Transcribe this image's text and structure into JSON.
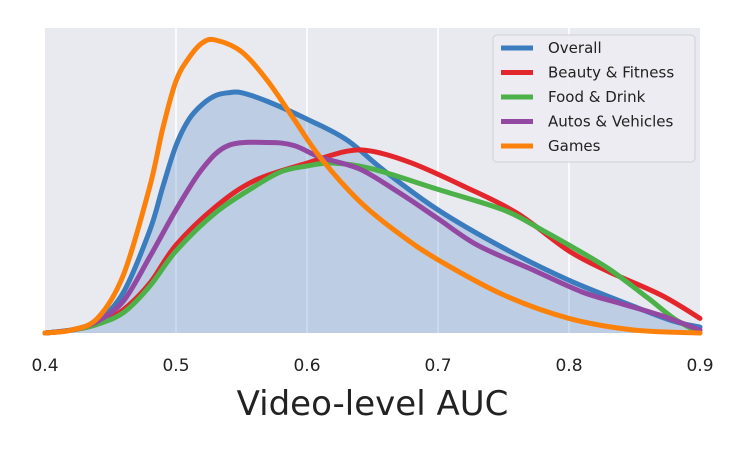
{
  "chart_data": {
    "type": "area",
    "title": "",
    "xlabel": "Video-level AUC",
    "ylabel": "",
    "xlim": [
      0.4,
      0.9
    ],
    "ylim": [
      0,
      1.0
    ],
    "x_ticks": [
      "0.4",
      "0.5",
      "0.6",
      "0.7",
      "0.8",
      "0.9"
    ],
    "grid": true,
    "legend_position": "top-right",
    "filled_series": "Overall",
    "series": [
      {
        "name": "Overall",
        "color": "#3a7cbd",
        "points": [
          [
            0.4,
            0.0
          ],
          [
            0.42,
            0.01
          ],
          [
            0.44,
            0.04
          ],
          [
            0.46,
            0.14
          ],
          [
            0.48,
            0.35
          ],
          [
            0.49,
            0.5
          ],
          [
            0.5,
            0.64
          ],
          [
            0.51,
            0.73
          ],
          [
            0.52,
            0.78
          ],
          [
            0.53,
            0.81
          ],
          [
            0.54,
            0.82
          ],
          [
            0.55,
            0.82
          ],
          [
            0.57,
            0.79
          ],
          [
            0.6,
            0.73
          ],
          [
            0.63,
            0.66
          ],
          [
            0.66,
            0.55
          ],
          [
            0.7,
            0.42
          ],
          [
            0.75,
            0.29
          ],
          [
            0.8,
            0.18
          ],
          [
            0.85,
            0.09
          ],
          [
            0.88,
            0.04
          ],
          [
            0.9,
            0.02
          ]
        ]
      },
      {
        "name": "Beauty & Fitness",
        "color": "#e3262b",
        "points": [
          [
            0.4,
            0.0
          ],
          [
            0.42,
            0.01
          ],
          [
            0.44,
            0.03
          ],
          [
            0.46,
            0.08
          ],
          [
            0.48,
            0.17
          ],
          [
            0.5,
            0.3
          ],
          [
            0.53,
            0.43
          ],
          [
            0.56,
            0.52
          ],
          [
            0.6,
            0.58
          ],
          [
            0.63,
            0.62
          ],
          [
            0.65,
            0.62
          ],
          [
            0.68,
            0.58
          ],
          [
            0.72,
            0.5
          ],
          [
            0.76,
            0.41
          ],
          [
            0.8,
            0.28
          ],
          [
            0.83,
            0.21
          ],
          [
            0.87,
            0.13
          ],
          [
            0.9,
            0.05
          ]
        ]
      },
      {
        "name": "Food & Drink",
        "color": "#4bb148",
        "points": [
          [
            0.4,
            0.0
          ],
          [
            0.42,
            0.01
          ],
          [
            0.44,
            0.03
          ],
          [
            0.46,
            0.07
          ],
          [
            0.48,
            0.16
          ],
          [
            0.5,
            0.28
          ],
          [
            0.53,
            0.41
          ],
          [
            0.56,
            0.5
          ],
          [
            0.58,
            0.55
          ],
          [
            0.6,
            0.57
          ],
          [
            0.62,
            0.58
          ],
          [
            0.65,
            0.56
          ],
          [
            0.7,
            0.49
          ],
          [
            0.75,
            0.42
          ],
          [
            0.78,
            0.35
          ],
          [
            0.8,
            0.3
          ],
          [
            0.83,
            0.22
          ],
          [
            0.86,
            0.12
          ],
          [
            0.88,
            0.05
          ],
          [
            0.9,
            0.0
          ]
        ]
      },
      {
        "name": "Autos & Vehicles",
        "color": "#9348a2",
        "points": [
          [
            0.4,
            0.0
          ],
          [
            0.42,
            0.01
          ],
          [
            0.44,
            0.04
          ],
          [
            0.46,
            0.11
          ],
          [
            0.48,
            0.26
          ],
          [
            0.5,
            0.42
          ],
          [
            0.52,
            0.56
          ],
          [
            0.54,
            0.64
          ],
          [
            0.57,
            0.65
          ],
          [
            0.59,
            0.64
          ],
          [
            0.61,
            0.6
          ],
          [
            0.64,
            0.56
          ],
          [
            0.67,
            0.48
          ],
          [
            0.7,
            0.39
          ],
          [
            0.73,
            0.3
          ],
          [
            0.77,
            0.22
          ],
          [
            0.81,
            0.14
          ],
          [
            0.84,
            0.1
          ],
          [
            0.87,
            0.06
          ],
          [
            0.9,
            0.01
          ]
        ]
      },
      {
        "name": "Games",
        "color": "#fb810b",
        "points": [
          [
            0.4,
            0.0
          ],
          [
            0.42,
            0.01
          ],
          [
            0.44,
            0.05
          ],
          [
            0.46,
            0.2
          ],
          [
            0.48,
            0.5
          ],
          [
            0.49,
            0.7
          ],
          [
            0.5,
            0.86
          ],
          [
            0.51,
            0.94
          ],
          [
            0.52,
            0.99
          ],
          [
            0.53,
            1.0
          ],
          [
            0.55,
            0.96
          ],
          [
            0.57,
            0.86
          ],
          [
            0.59,
            0.73
          ],
          [
            0.61,
            0.6
          ],
          [
            0.64,
            0.45
          ],
          [
            0.67,
            0.34
          ],
          [
            0.7,
            0.25
          ],
          [
            0.75,
            0.13
          ],
          [
            0.8,
            0.05
          ],
          [
            0.85,
            0.01
          ],
          [
            0.9,
            0.0
          ]
        ]
      }
    ]
  }
}
